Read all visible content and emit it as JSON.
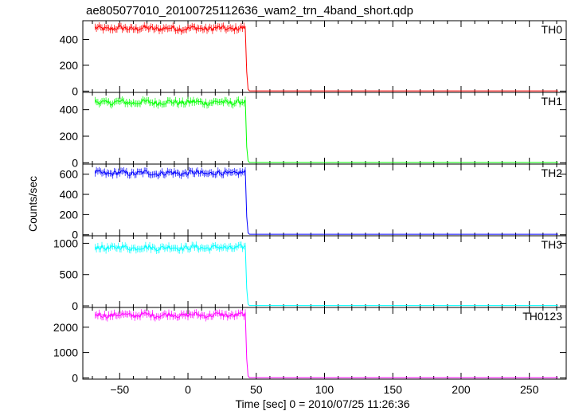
{
  "chart_data": {
    "type": "line",
    "title": "ae805077010_20100725112636_wam2_trn_4band_short.qdp",
    "xlabel": "Time [sec] 0 = 2010/07/25 11:26:36",
    "ylabel": "Counts/sec",
    "xlim": [
      -77,
      277
    ],
    "x_ticks": [
      -50,
      0,
      50,
      100,
      150,
      200,
      250
    ],
    "x_tick_labels": [
      "−50",
      "0",
      "50",
      "100",
      "150",
      "200",
      "250"
    ],
    "series": [
      {
        "name": "TH0",
        "color": "#ff0000",
        "ylim": [
          -10,
          545
        ],
        "y_ticks": [
          0,
          200,
          400
        ],
        "x": [
          -68,
          42,
          43,
          44,
          45,
          271
        ],
        "y": [
          485,
          470,
          150,
          15,
          2,
          2
        ]
      },
      {
        "name": "TH1",
        "color": "#00ff00",
        "ylim": [
          -10,
          530
        ],
        "y_ticks": [
          0,
          200,
          400
        ],
        "x": [
          -68,
          42,
          43,
          44,
          45,
          271
        ],
        "y": [
          455,
          450,
          120,
          15,
          2,
          2
        ]
      },
      {
        "name": "TH2",
        "color": "#0000ff",
        "ylim": [
          -10,
          700
        ],
        "y_ticks": [
          0,
          200,
          400,
          600
        ],
        "x": [
          -68,
          42,
          43,
          44,
          45,
          271
        ],
        "y": [
          610,
          600,
          180,
          20,
          5,
          5
        ]
      },
      {
        "name": "TH3",
        "color": "#00ffff",
        "ylim": [
          -25,
          1120
        ],
        "y_ticks": [
          0,
          500,
          1000
        ],
        "x": [
          -68,
          42,
          43,
          44,
          45,
          271
        ],
        "y": [
          930,
          920,
          280,
          30,
          5,
          5
        ]
      },
      {
        "name": "TH0123",
        "color": "#ff00ff",
        "ylim": [
          -50,
          2780
        ],
        "y_ticks": [
          0,
          1000,
          2000
        ],
        "x": [
          -68,
          42,
          43,
          44,
          45,
          271
        ],
        "y": [
          2480,
          2450,
          750,
          80,
          10,
          10
        ]
      }
    ]
  }
}
